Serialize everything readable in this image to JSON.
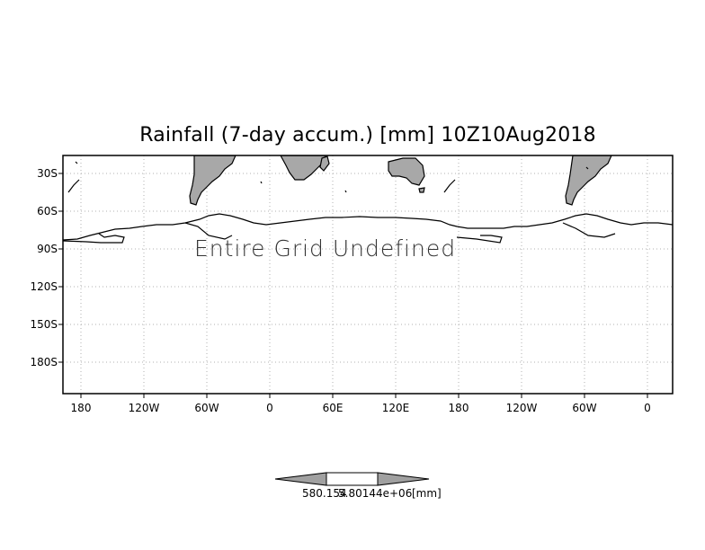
{
  "title": "Rainfall (7-day accum.) [mm] 10Z10Aug2018",
  "note": "Entire Grid Undefined",
  "latitude_labels": [
    "30S",
    "60S",
    "90S",
    "120S",
    "150S",
    "180S"
  ],
  "longitude_labels": [
    "180",
    "120W",
    "60W",
    "0",
    "60E",
    "120E",
    "180",
    "120W",
    "60W",
    "0"
  ],
  "colorbar": {
    "left_label": "580.154",
    "right_label": "5.80144e+06",
    "unit": "[mm]",
    "arrow_color": "#a0a0a0",
    "box_color": "#ffffff"
  },
  "land_fill_color": "#a8a8a8",
  "grid_style": "dotted"
}
